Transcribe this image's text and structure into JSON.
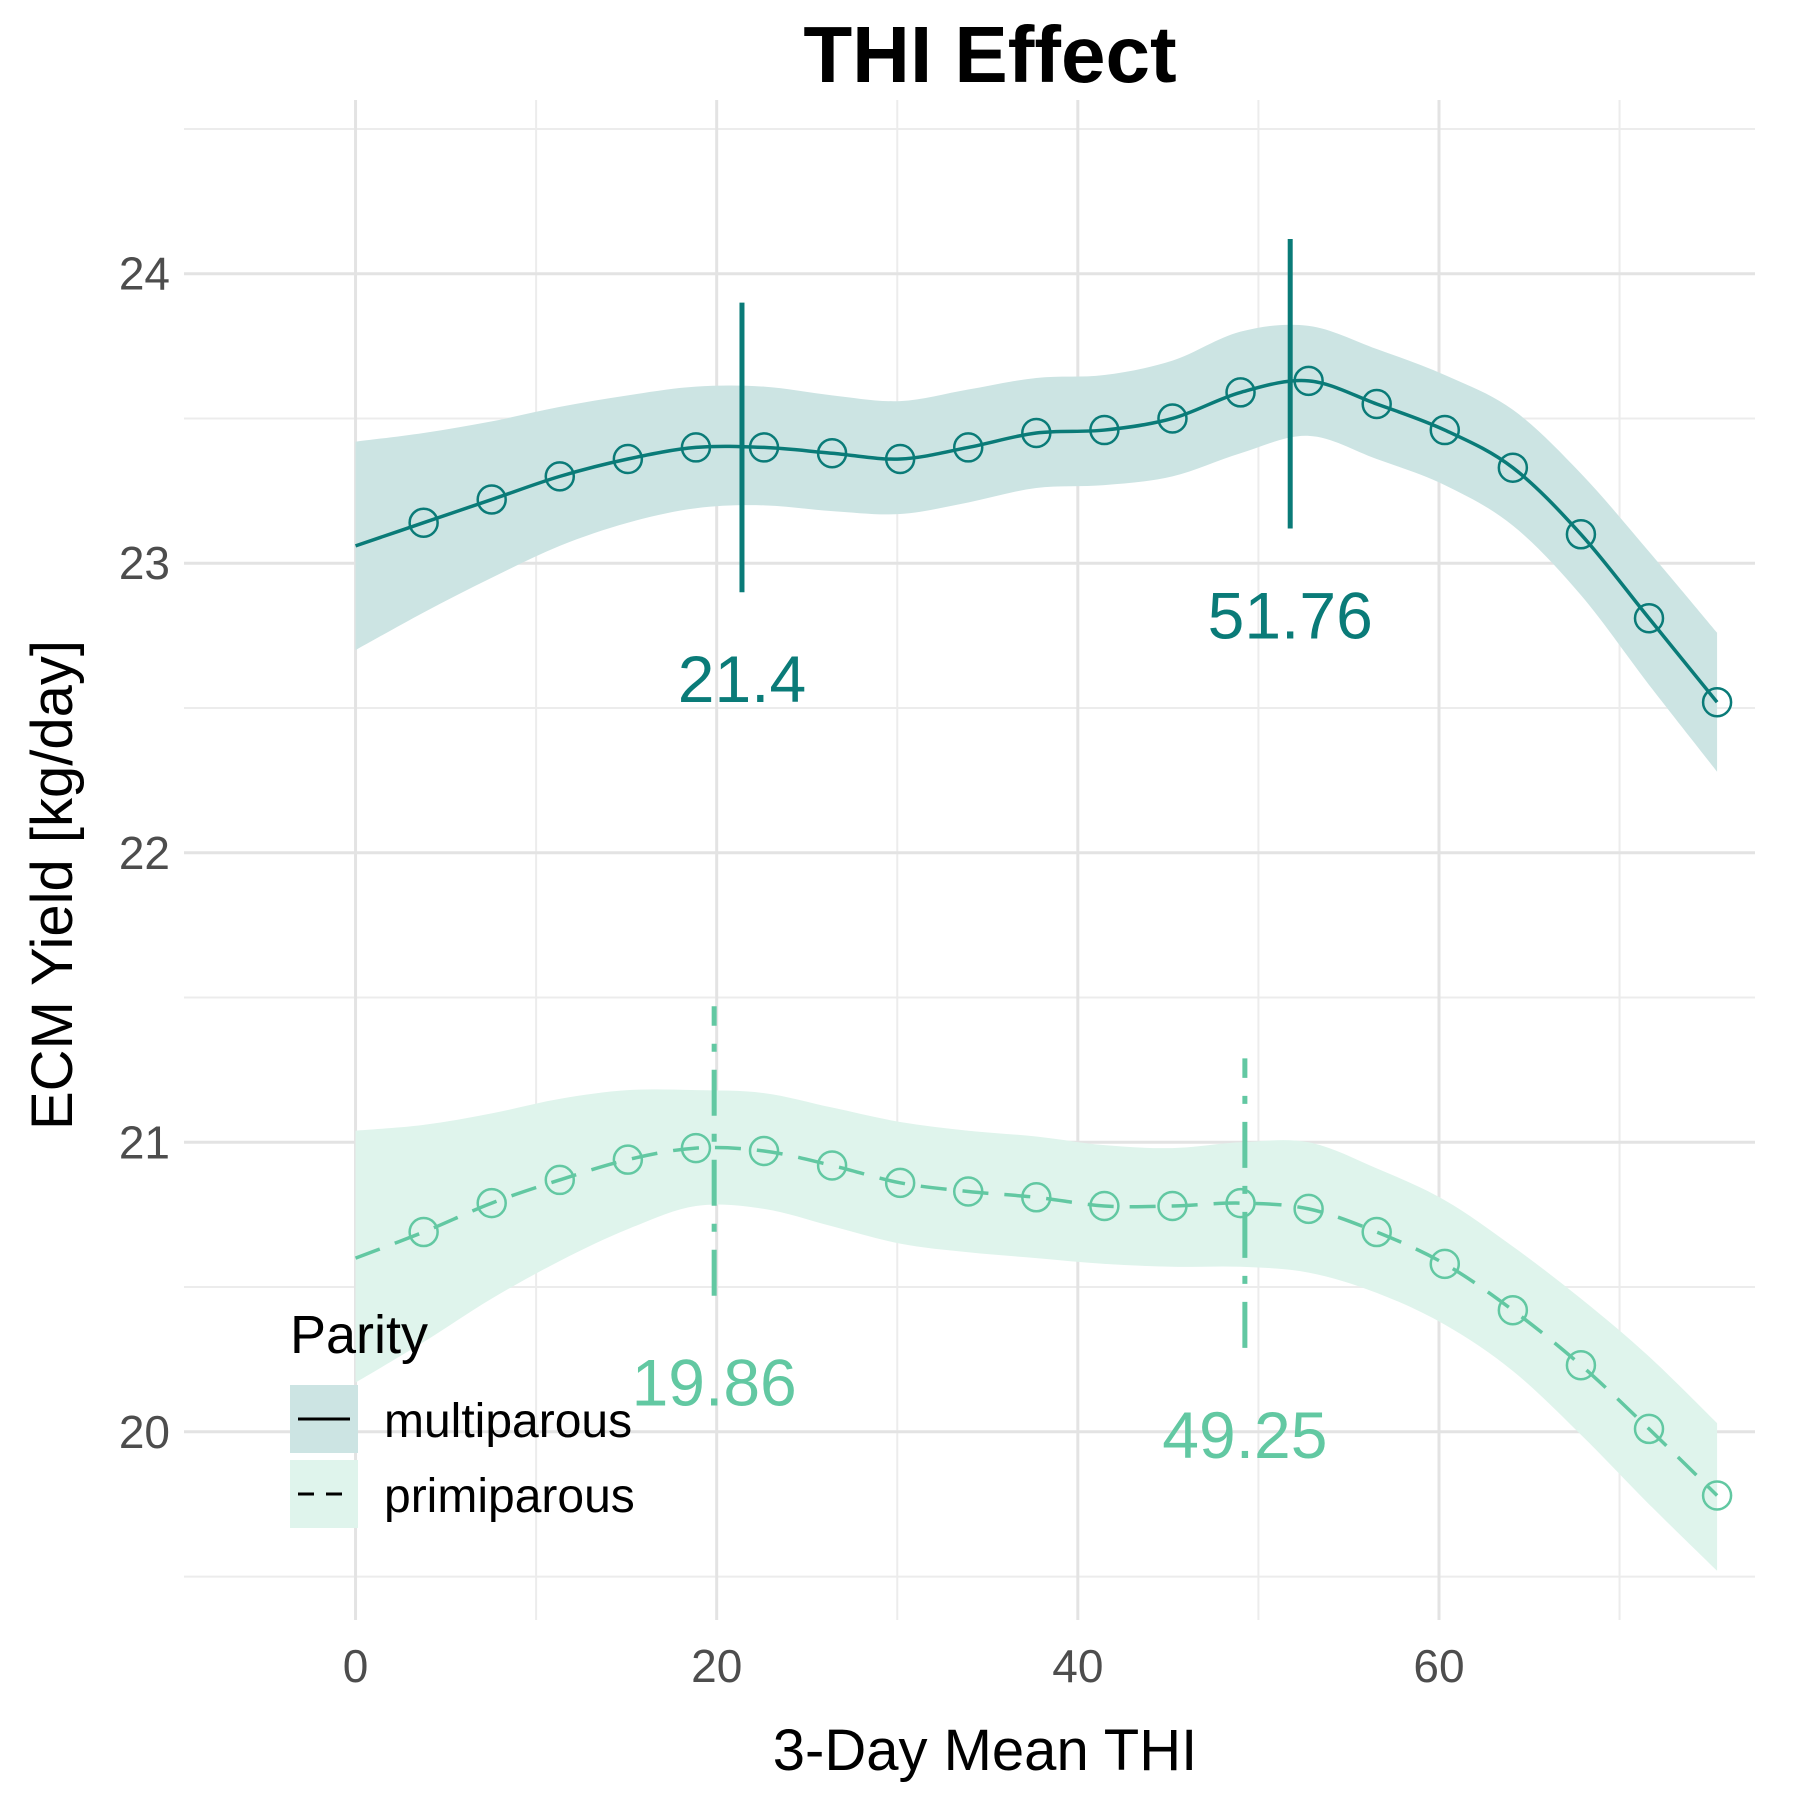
{
  "chart_data": {
    "type": "line",
    "title": "THI Effect",
    "xlabel": "3-Day Mean THI",
    "ylabel": "ECM Yield [kg/day]",
    "xlim": [
      -9.5,
      77.5
    ],
    "ylim": [
      19.35,
      24.6
    ],
    "x_ticks": [
      0,
      20,
      40,
      60
    ],
    "y_ticks": [
      20,
      21,
      22,
      23,
      24
    ],
    "grid": true,
    "legend": {
      "title": "Parity",
      "position": "bottom-left"
    },
    "series": [
      {
        "name": "multiparous",
        "color": "#0a7b78",
        "band_color": "#cce4e3",
        "line_style": "solid",
        "x": [
          0,
          3.77,
          7.54,
          11.31,
          15.08,
          18.85,
          22.62,
          26.39,
          30.16,
          33.93,
          37.7,
          41.47,
          45.24,
          49.01,
          52.78,
          56.55,
          60.32,
          64.09,
          67.86,
          71.63,
          75.4
        ],
        "y": [
          23.06,
          23.14,
          23.22,
          23.3,
          23.36,
          23.4,
          23.4,
          23.38,
          23.36,
          23.4,
          23.45,
          23.46,
          23.5,
          23.59,
          23.63,
          23.55,
          23.46,
          23.33,
          23.1,
          22.81,
          22.52
        ],
        "lower": [
          22.7,
          22.83,
          22.95,
          23.06,
          23.14,
          23.19,
          23.2,
          23.18,
          23.17,
          23.21,
          23.26,
          23.27,
          23.3,
          23.38,
          23.44,
          23.36,
          23.27,
          23.13,
          22.89,
          22.58,
          22.28
        ],
        "upper": [
          23.42,
          23.45,
          23.49,
          23.54,
          23.58,
          23.61,
          23.61,
          23.58,
          23.56,
          23.6,
          23.64,
          23.65,
          23.7,
          23.8,
          23.82,
          23.74,
          23.65,
          23.53,
          23.31,
          23.04,
          22.76
        ],
        "vlines": [
          {
            "x": 21.4,
            "y_from": 22.9,
            "y_to": 23.9,
            "label": "21.4"
          },
          {
            "x": 51.76,
            "y_from": 23.12,
            "y_to": 24.12,
            "label": "51.76"
          }
        ]
      },
      {
        "name": "primiparous",
        "color": "#62c8a2",
        "band_color": "#dff4ec",
        "line_style": "dashed",
        "x": [
          0,
          3.77,
          7.54,
          11.31,
          15.08,
          18.85,
          22.62,
          26.39,
          30.16,
          33.93,
          37.7,
          41.47,
          45.24,
          49.01,
          52.78,
          56.55,
          60.32,
          64.09,
          67.86,
          71.63,
          75.4
        ],
        "y": [
          20.6,
          20.69,
          20.79,
          20.87,
          20.94,
          20.98,
          20.97,
          20.92,
          20.86,
          20.83,
          20.81,
          20.78,
          20.78,
          20.79,
          20.77,
          20.69,
          20.58,
          20.42,
          20.23,
          20.01,
          19.78
        ],
        "lower": [
          20.17,
          20.31,
          20.46,
          20.59,
          20.7,
          20.78,
          20.77,
          20.71,
          20.65,
          20.62,
          20.6,
          20.58,
          20.57,
          20.57,
          20.55,
          20.48,
          20.37,
          20.21,
          19.99,
          19.75,
          19.52
        ],
        "upper": [
          21.04,
          21.06,
          21.1,
          21.15,
          21.18,
          21.18,
          21.17,
          21.12,
          21.07,
          21.04,
          21.02,
          20.99,
          20.98,
          21.0,
          21.0,
          20.91,
          20.8,
          20.64,
          20.46,
          20.26,
          20.03
        ],
        "vlines": [
          {
            "x": 19.86,
            "y_from": 20.47,
            "y_to": 21.47,
            "label": "19.86"
          },
          {
            "x": 49.25,
            "y_from": 20.29,
            "y_to": 21.29,
            "label": "49.25"
          }
        ]
      }
    ]
  }
}
